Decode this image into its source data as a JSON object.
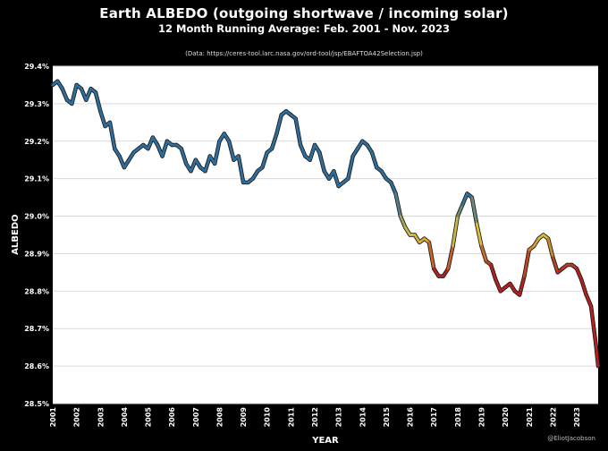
{
  "title": "Earth ALBEDO (outgoing shortwave / incoming solar)",
  "subtitle": "12 Month Running Average: Feb. 2001 - Nov. 2023",
  "source": "(Data: https://ceres-tool.larc.nasa.gov/ord-tool/jsp/EBAFTOA42Selection.jsp)",
  "credit": "@EliotJacobson",
  "colors": {
    "background": "#000000",
    "plot_area": "#ffffff",
    "gridline": "#d9d9d9",
    "line_cool": "#2f6d9b",
    "line_mid": "#dcc03a",
    "line_warm": "#b3201d"
  },
  "chart_data": {
    "type": "line",
    "title": "Earth ALBEDO (outgoing shortwave / incoming solar)",
    "subtitle": "12 Month Running Average: Feb. 2001 - Nov. 2023",
    "xlabel": "YEAR",
    "ylabel": "ALBEDO",
    "xlim": [
      2001.0,
      2023.9
    ],
    "ylim": [
      28.5,
      29.4
    ],
    "x_ticks": [
      2001,
      2002,
      2003,
      2004,
      2005,
      2006,
      2007,
      2008,
      2009,
      2010,
      2011,
      2012,
      2013,
      2014,
      2015,
      2016,
      2017,
      2018,
      2019,
      2020,
      2021,
      2022,
      2023
    ],
    "y_ticks": [
      28.5,
      28.6,
      28.7,
      28.8,
      28.9,
      29.0,
      29.1,
      29.2,
      29.3,
      29.4
    ],
    "y_tick_labels": [
      "28.5%",
      "28.6%",
      "28.7%",
      "28.8%",
      "28.9%",
      "29.0%",
      "29.1%",
      "29.2%",
      "29.3%",
      "29.4%"
    ],
    "grid": "horizontal",
    "legend": "none",
    "color_scale": "line colored by value: blue (high) to yellow to red (low)",
    "x": [
      2001.0,
      2001.2,
      2001.4,
      2001.6,
      2001.8,
      2002.0,
      2002.2,
      2002.4,
      2002.6,
      2002.8,
      2003.0,
      2003.2,
      2003.4,
      2003.6,
      2003.8,
      2004.0,
      2004.2,
      2004.4,
      2004.6,
      2004.8,
      2005.0,
      2005.2,
      2005.4,
      2005.6,
      2005.8,
      2006.0,
      2006.2,
      2006.4,
      2006.6,
      2006.8,
      2007.0,
      2007.2,
      2007.4,
      2007.6,
      2007.8,
      2008.0,
      2008.2,
      2008.4,
      2008.6,
      2008.8,
      2009.0,
      2009.2,
      2009.4,
      2009.6,
      2009.8,
      2010.0,
      2010.2,
      2010.4,
      2010.6,
      2010.8,
      2011.0,
      2011.2,
      2011.4,
      2011.6,
      2011.8,
      2012.0,
      2012.2,
      2012.4,
      2012.6,
      2012.8,
      2013.0,
      2013.2,
      2013.4,
      2013.6,
      2013.8,
      2014.0,
      2014.2,
      2014.4,
      2014.6,
      2014.8,
      2015.0,
      2015.2,
      2015.4,
      2015.6,
      2015.8,
      2016.0,
      2016.2,
      2016.4,
      2016.6,
      2016.8,
      2017.0,
      2017.2,
      2017.4,
      2017.6,
      2017.8,
      2018.0,
      2018.2,
      2018.4,
      2018.6,
      2018.8,
      2019.0,
      2019.2,
      2019.4,
      2019.6,
      2019.8,
      2020.0,
      2020.2,
      2020.4,
      2020.6,
      2020.8,
      2021.0,
      2021.2,
      2021.4,
      2021.6,
      2021.8,
      2022.0,
      2022.2,
      2022.4,
      2022.6,
      2022.8,
      2023.0,
      2023.2,
      2023.4,
      2023.6,
      2023.8,
      2023.9
    ],
    "y": [
      29.35,
      29.36,
      29.34,
      29.31,
      29.3,
      29.35,
      29.34,
      29.31,
      29.34,
      29.33,
      29.28,
      29.24,
      29.25,
      29.18,
      29.16,
      29.13,
      29.15,
      29.17,
      29.18,
      29.19,
      29.18,
      29.21,
      29.19,
      29.16,
      29.2,
      29.19,
      29.19,
      29.18,
      29.14,
      29.12,
      29.15,
      29.13,
      29.12,
      29.16,
      29.14,
      29.2,
      29.22,
      29.2,
      29.15,
      29.16,
      29.09,
      29.09,
      29.1,
      29.12,
      29.13,
      29.17,
      29.18,
      29.22,
      29.27,
      29.28,
      29.27,
      29.26,
      29.19,
      29.16,
      29.15,
      29.19,
      29.17,
      29.12,
      29.1,
      29.12,
      29.08,
      29.09,
      29.1,
      29.16,
      29.18,
      29.2,
      29.19,
      29.17,
      29.13,
      29.12,
      29.1,
      29.09,
      29.06,
      29.0,
      28.97,
      28.95,
      28.95,
      28.93,
      28.94,
      28.93,
      28.86,
      28.84,
      28.84,
      28.86,
      28.92,
      29.0,
      29.03,
      29.06,
      29.05,
      28.98,
      28.92,
      28.88,
      28.87,
      28.83,
      28.8,
      28.81,
      28.82,
      28.8,
      28.79,
      28.84,
      28.91,
      28.92,
      28.94,
      28.95,
      28.94,
      28.89,
      28.85,
      28.86,
      28.87,
      28.87,
      28.86,
      28.83,
      28.79,
      28.76,
      28.66,
      28.6
    ]
  }
}
